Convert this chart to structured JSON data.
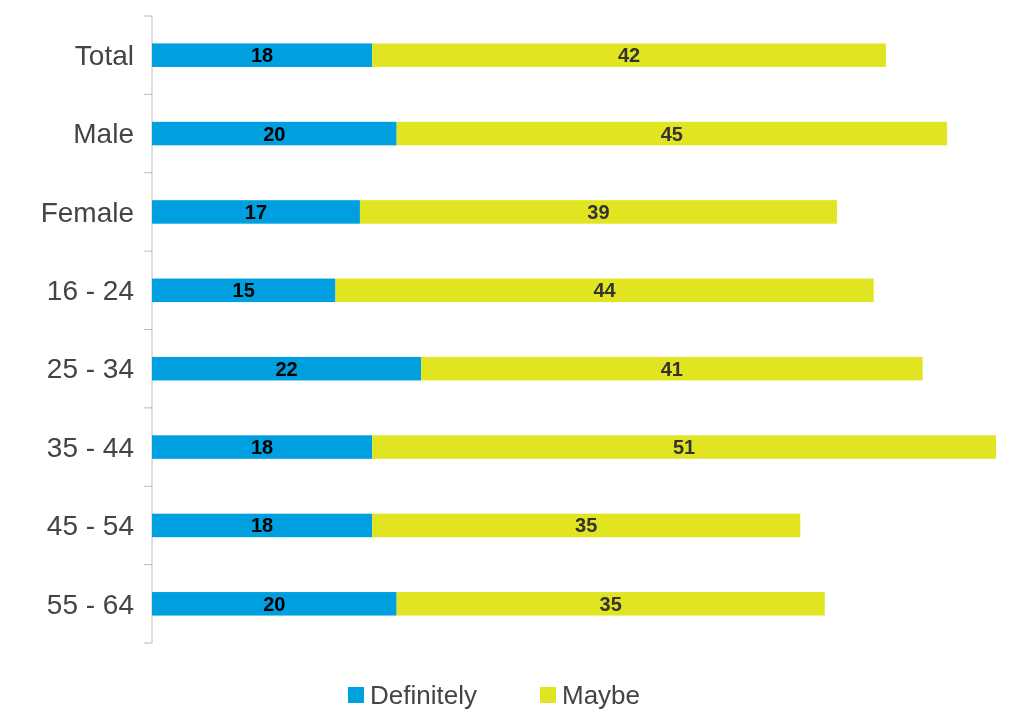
{
  "chart_data": {
    "type": "bar",
    "orientation": "horizontal",
    "stacked": true,
    "data_labels": true,
    "legend": "bottom",
    "categories": [
      "Total",
      "Male",
      "Female",
      "16 - 24",
      "25 - 34",
      "35 - 44",
      "45 - 54",
      "55 - 64"
    ],
    "series": [
      {
        "name": "Definitely",
        "color": "#009fe0",
        "values": [
          18,
          20,
          17,
          15,
          22,
          18,
          18,
          20
        ]
      },
      {
        "name": "Maybe",
        "color": "#e1e521",
        "values": [
          42,
          45,
          39,
          44,
          41,
          51,
          35,
          35
        ]
      }
    ]
  }
}
